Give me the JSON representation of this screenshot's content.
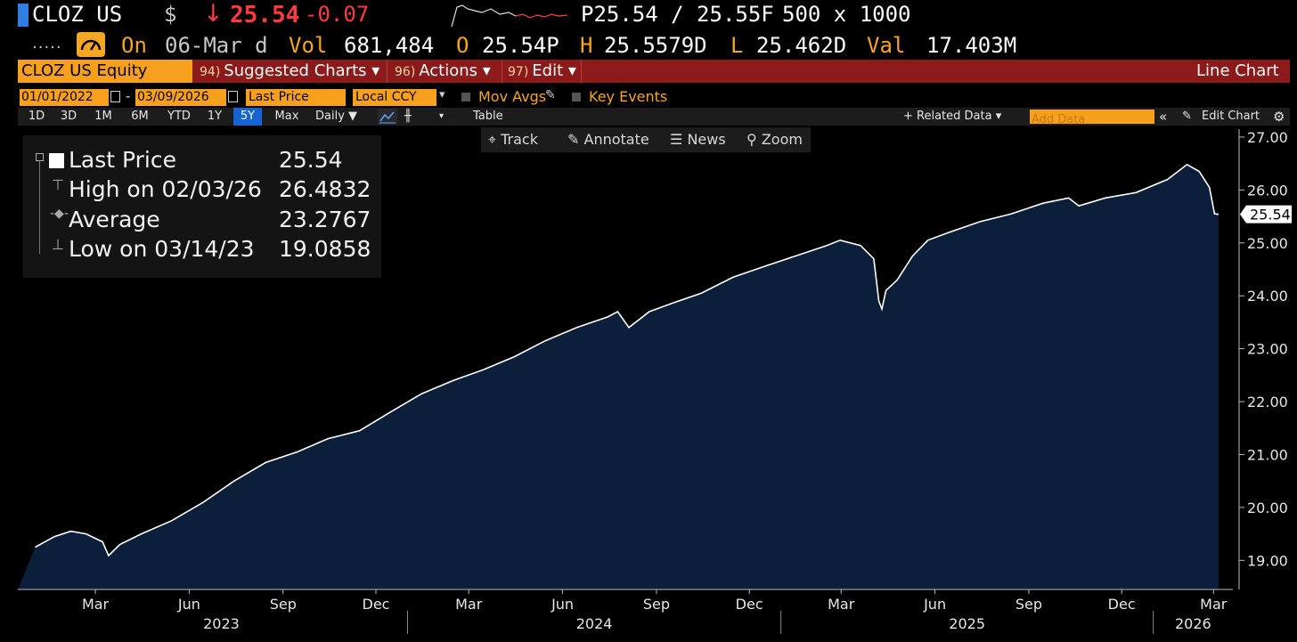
{
  "header": {
    "ticker": "CLOZ US",
    "currency_symbol": "$",
    "arrow": "↓",
    "last": "25.54",
    "change": "-0.07",
    "bid_ask": "P25.54 / 25.55F",
    "size": "500 x 1000",
    "dots": ".....",
    "on_label": "On",
    "date": "06-Mar d",
    "vol_label": "Vol",
    "vol": "681,484",
    "open_label": "O",
    "open": "25.54P",
    "high_label": "H",
    "high": "25.5579D",
    "low_label": "L",
    "low": "25.462D",
    "val_label": "Val",
    "val": "17.403M"
  },
  "command_bar": {
    "security": "CLOZ US Equity",
    "menus": [
      {
        "num": "94)",
        "label": "Suggested Charts ▾"
      },
      {
        "num": "96)",
        "label": "Actions ▾"
      },
      {
        "num": "97)",
        "label": "Edit ▾"
      }
    ],
    "chart_type": "Line Chart"
  },
  "settings": {
    "start_date": "01/01/2022",
    "dash": "-",
    "end_date": "03/09/2026",
    "field": "Last Price",
    "currency": "Local CCY",
    "mov_avgs": "Mov Avgs",
    "key_events": "Key Events"
  },
  "periods": [
    "1D",
    "3D",
    "1M",
    "6M",
    "YTD",
    "1Y",
    "5Y",
    "Max"
  ],
  "active_period": "5Y",
  "frequency": "Daily ▼",
  "table_label": "Table",
  "related_data": "+ Related Data ▾",
  "add_data_placeholder": "Add Data",
  "edit_chart": "Edit Chart",
  "tools": [
    "Track",
    "Annotate",
    "News",
    "Zoom"
  ],
  "legend": {
    "last_label": "Last Price",
    "last_value": "25.54",
    "high_label": "High on 02/03/26",
    "high_value": "26.4832",
    "avg_label": "Average",
    "avg_value": "23.2767",
    "low_label": "Low on 03/14/23",
    "low_value": "19.0858"
  },
  "chart_data": {
    "type": "area",
    "series": [
      {
        "name": "Last Price",
        "points": [
          [
            "2023-01-01",
            19.25
          ],
          [
            "2023-01-20",
            19.45
          ],
          [
            "2023-02-05",
            19.55
          ],
          [
            "2023-02-20",
            19.5
          ],
          [
            "2023-03-08",
            19.35
          ],
          [
            "2023-03-14",
            19.09
          ],
          [
            "2023-03-25",
            19.3
          ],
          [
            "2023-04-15",
            19.5
          ],
          [
            "2023-05-15",
            19.75
          ],
          [
            "2023-06-15",
            20.1
          ],
          [
            "2023-07-15",
            20.5
          ],
          [
            "2023-08-15",
            20.85
          ],
          [
            "2023-09-15",
            21.05
          ],
          [
            "2023-10-15",
            21.3
          ],
          [
            "2023-11-15",
            21.45
          ],
          [
            "2023-12-15",
            21.8
          ],
          [
            "2024-01-15",
            22.15
          ],
          [
            "2024-02-15",
            22.4
          ],
          [
            "2024-03-15",
            22.6
          ],
          [
            "2024-04-15",
            22.85
          ],
          [
            "2024-05-15",
            23.15
          ],
          [
            "2024-06-15",
            23.4
          ],
          [
            "2024-07-15",
            23.6
          ],
          [
            "2024-07-25",
            23.7
          ],
          [
            "2024-08-05",
            23.4
          ],
          [
            "2024-08-25",
            23.7
          ],
          [
            "2024-09-15",
            23.85
          ],
          [
            "2024-10-15",
            24.05
          ],
          [
            "2024-11-15",
            24.35
          ],
          [
            "2024-12-15",
            24.55
          ],
          [
            "2025-01-15",
            24.75
          ],
          [
            "2025-02-15",
            24.95
          ],
          [
            "2025-02-28",
            25.05
          ],
          [
            "2025-03-20",
            24.95
          ],
          [
            "2025-04-02",
            24.7
          ],
          [
            "2025-04-07",
            23.9
          ],
          [
            "2025-04-10",
            23.75
          ],
          [
            "2025-04-14",
            24.1
          ],
          [
            "2025-04-25",
            24.3
          ],
          [
            "2025-05-10",
            24.75
          ],
          [
            "2025-05-25",
            25.05
          ],
          [
            "2025-06-15",
            25.2
          ],
          [
            "2025-07-15",
            25.4
          ],
          [
            "2025-08-15",
            25.55
          ],
          [
            "2025-09-15",
            25.75
          ],
          [
            "2025-10-10",
            25.85
          ],
          [
            "2025-10-20",
            25.7
          ],
          [
            "2025-11-15",
            25.85
          ],
          [
            "2025-12-15",
            25.95
          ],
          [
            "2026-01-15",
            26.2
          ],
          [
            "2026-02-03",
            26.48
          ],
          [
            "2026-02-15",
            26.35
          ],
          [
            "2026-02-25",
            26.05
          ],
          [
            "2026-03-02",
            25.55
          ],
          [
            "2026-03-06",
            25.54
          ]
        ]
      }
    ],
    "x_start": "2022-12-15",
    "x_end": "2026-03-20",
    "ylim": [
      18.45,
      27.15
    ],
    "yticks": [
      "27.00",
      "26.00",
      "25.00",
      "24.00",
      "23.00",
      "22.00",
      "21.00",
      "20.00",
      "19.00"
    ],
    "xticks": [
      {
        "label": "Mar",
        "date": "2023-03-01"
      },
      {
        "label": "Jun",
        "date": "2023-06-01"
      },
      {
        "label": "Sep",
        "date": "2023-09-01"
      },
      {
        "label": "Dec",
        "date": "2023-12-01"
      },
      {
        "label": "Mar",
        "date": "2024-03-01"
      },
      {
        "label": "Jun",
        "date": "2024-06-01"
      },
      {
        "label": "Sep",
        "date": "2024-09-01"
      },
      {
        "label": "Dec",
        "date": "2024-12-01"
      },
      {
        "label": "Mar",
        "date": "2025-03-01"
      },
      {
        "label": "Jun",
        "date": "2025-06-01"
      },
      {
        "label": "Sep",
        "date": "2025-09-01"
      },
      {
        "label": "Dec",
        "date": "2025-12-01"
      },
      {
        "label": "Mar",
        "date": "2026-03-01"
      }
    ],
    "years": [
      "2023",
      "2024",
      "2025",
      "2026"
    ],
    "last_label": "25.54",
    "fill_color": "#0b1f3a",
    "line_color": "#ffffff"
  }
}
